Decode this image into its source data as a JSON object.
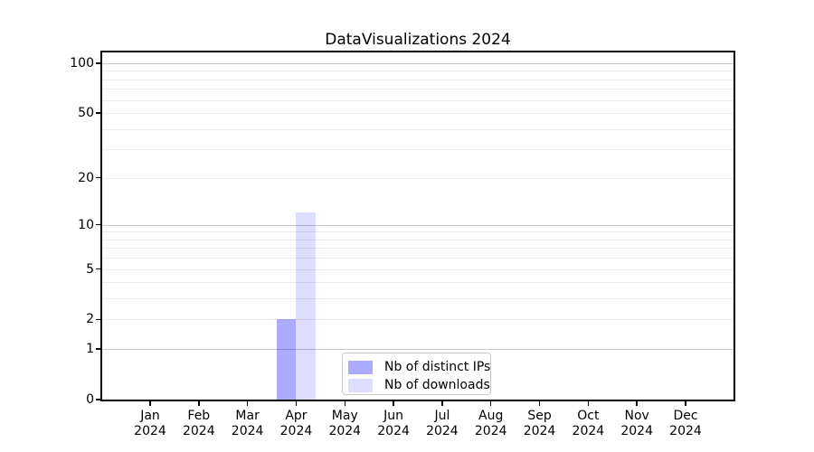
{
  "title": "DataVisualizations 2024",
  "chart_data": {
    "type": "bar",
    "title": "DataVisualizations 2024",
    "x_axis": {
      "months": [
        "Jan",
        "Feb",
        "Mar",
        "Apr",
        "May",
        "Jun",
        "Jul",
        "Aug",
        "Sep",
        "Oct",
        "Nov",
        "Dec"
      ],
      "year": "2024"
    },
    "y_axis": {
      "scale": "log1p",
      "tick_labels": [
        "0",
        "1",
        "2",
        "5",
        "10",
        "20",
        "50",
        "100"
      ],
      "tick_values": [
        0,
        1,
        2,
        5,
        10,
        20,
        50,
        100
      ],
      "major_gridline_values": [
        1,
        10,
        100
      ],
      "minor_gridline_values": [
        2,
        3,
        4,
        5,
        6,
        7,
        8,
        9,
        20,
        30,
        40,
        50,
        60,
        70,
        80,
        90
      ],
      "ylim": [
        0,
        117
      ],
      "grid": true
    },
    "series": [
      {
        "name": "Nb of distinct IPs",
        "color": "rgba(0,0,255,0.33)",
        "values": [
          0,
          0,
          0,
          2,
          0,
          0,
          0,
          0,
          0,
          0,
          0,
          0
        ]
      },
      {
        "name": "Nb of downloads",
        "color": "rgba(0,0,255,0.135)",
        "values": [
          0,
          0,
          0,
          12,
          0,
          0,
          0,
          0,
          0,
          0,
          0,
          0
        ]
      }
    ],
    "legend": {
      "entries": [
        "Nb of distinct IPs",
        "Nb of downloads"
      ],
      "position": "lower center"
    },
    "colors": {
      "major_grid": "#c9c9c9",
      "minor_grid": "#ececec",
      "spine": "#000000",
      "background": "#ffffff"
    }
  }
}
